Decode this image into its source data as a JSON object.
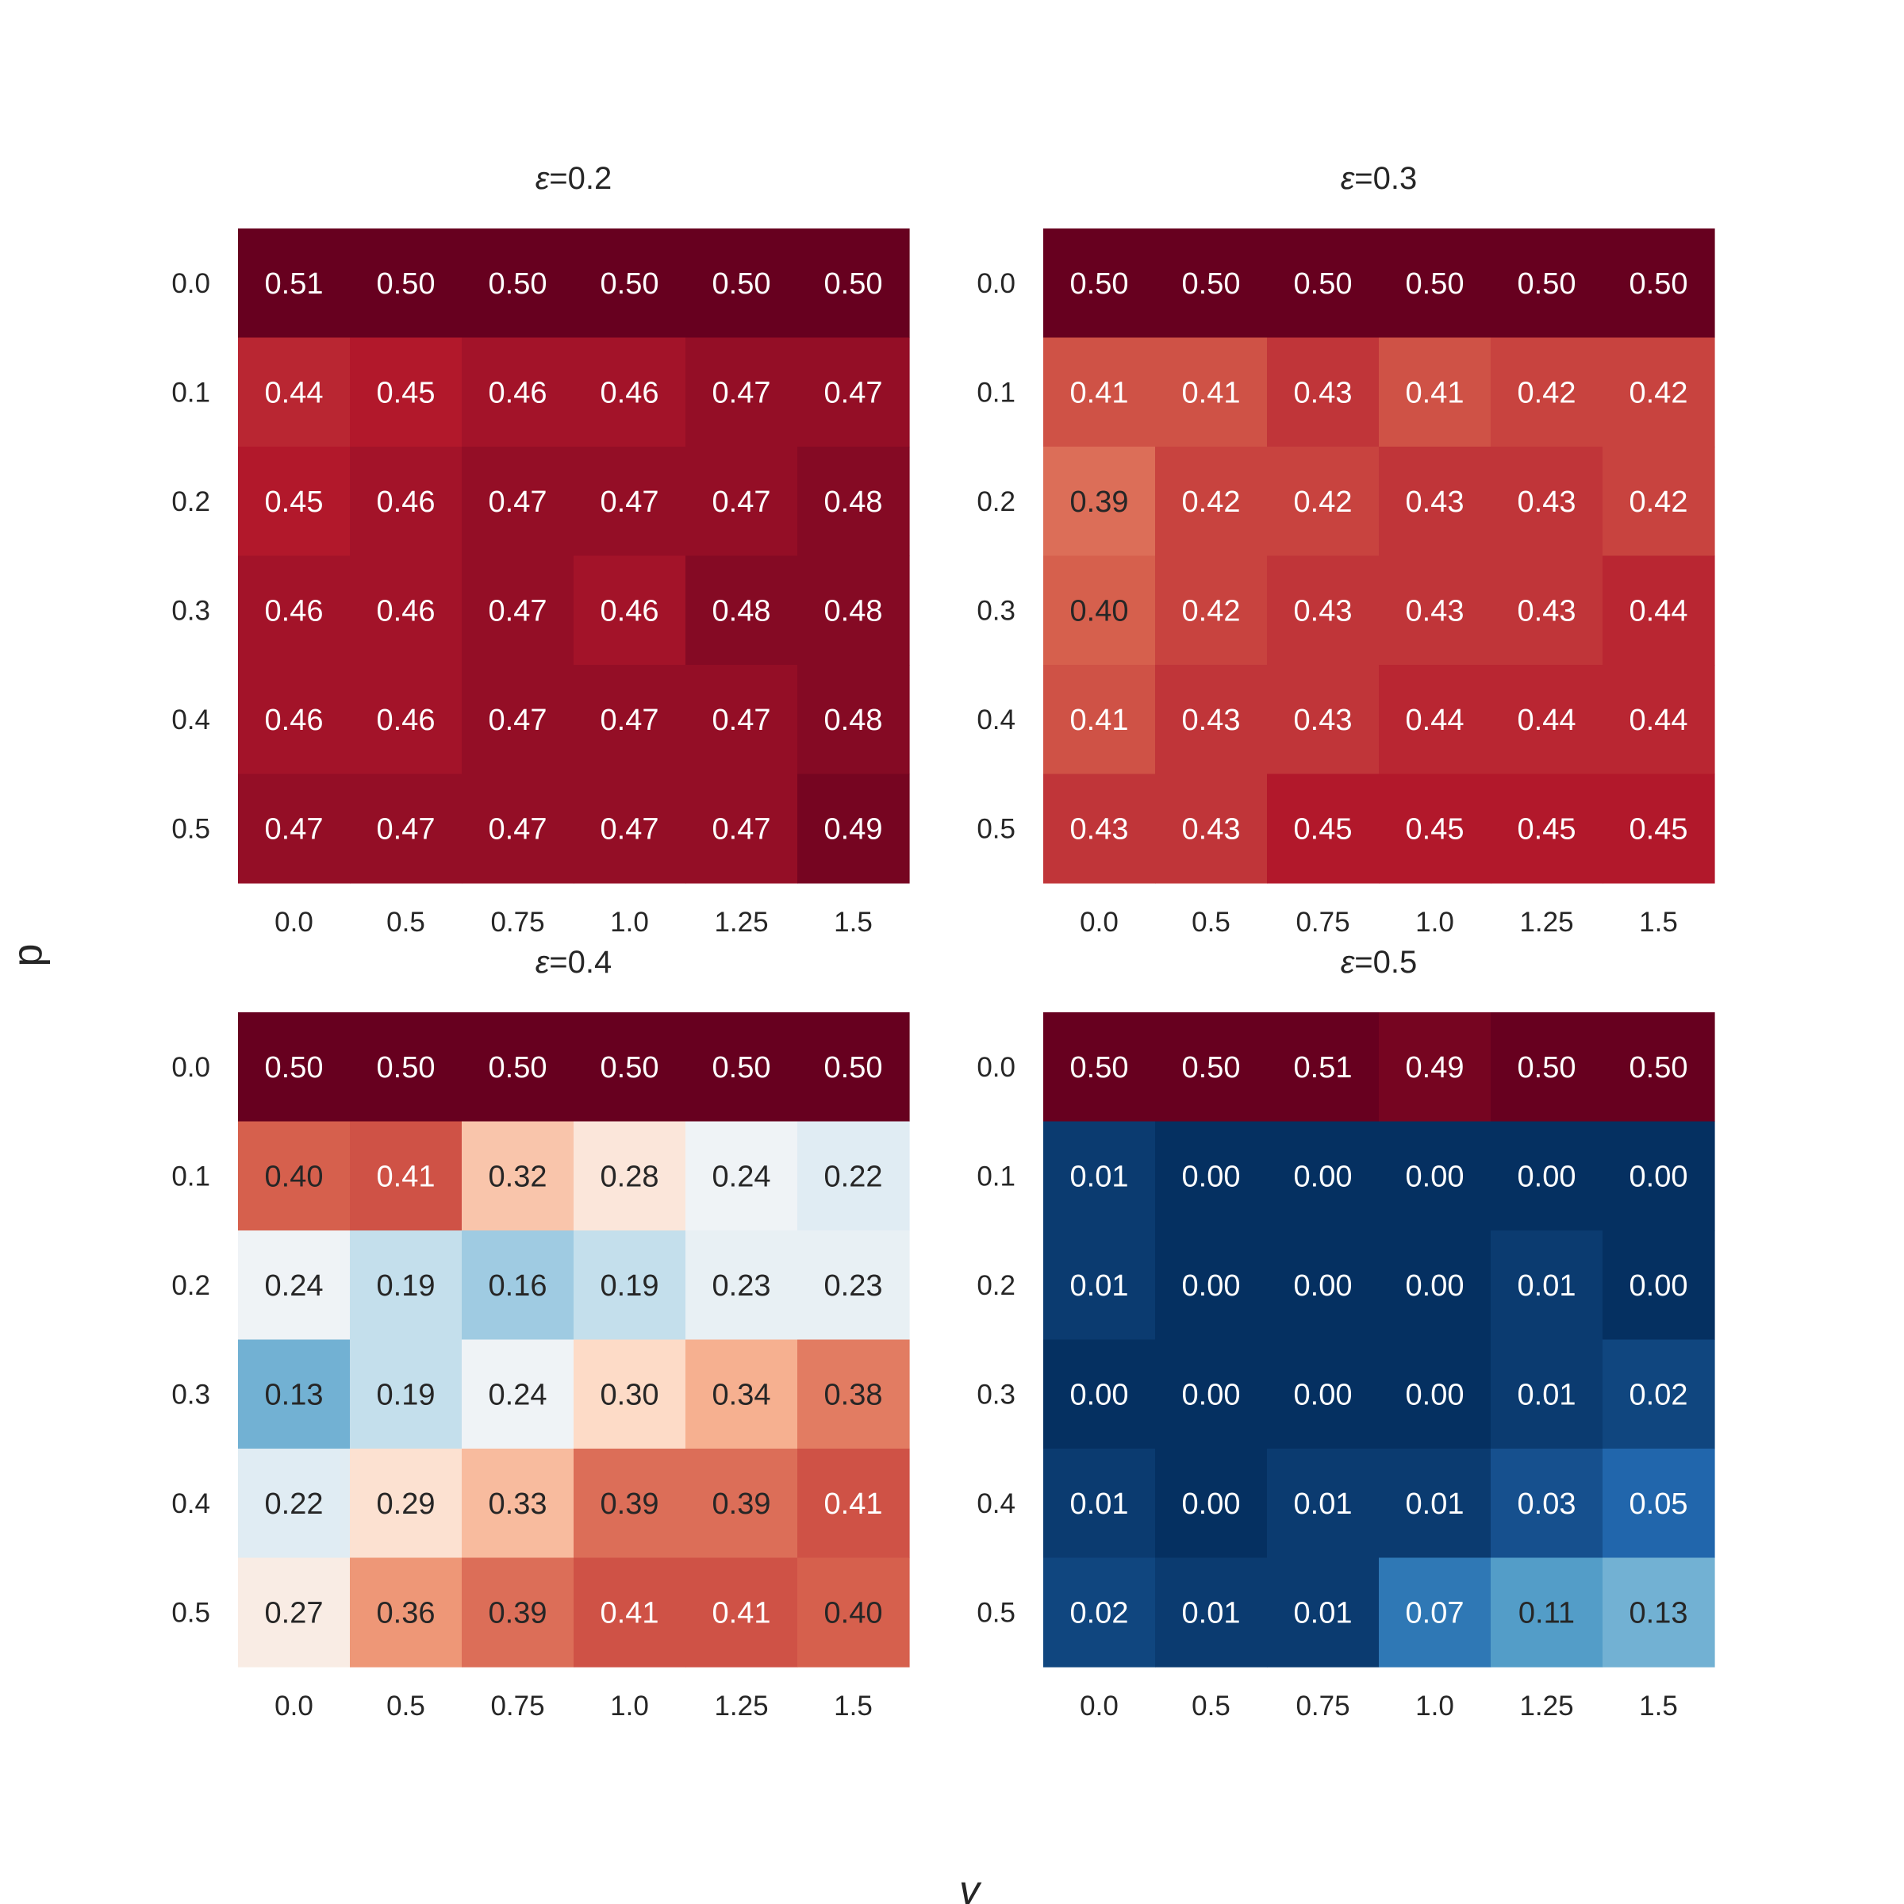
{
  "chart_data": {
    "type": "heatmap",
    "xlabel": "γ",
    "ylabel": "p",
    "colormap": "RdBu_r",
    "color_range": [
      0.0,
      0.5
    ],
    "colors": {
      "low": "#053061",
      "mid": "#f7f7f7",
      "high": "#67001f",
      "text_dark": "#262626",
      "text_light": "#ffffff"
    },
    "x_ticks": [
      "0.0",
      "0.5",
      "0.75",
      "1.0",
      "1.25",
      "1.5"
    ],
    "y_ticks": [
      "0.0",
      "0.1",
      "0.2",
      "0.3",
      "0.4",
      "0.5"
    ],
    "panels": [
      {
        "title_prefix": "ε",
        "title_suffix": "=0.2",
        "values": [
          [
            0.51,
            0.5,
            0.5,
            0.5,
            0.5,
            0.5
          ],
          [
            0.44,
            0.45,
            0.46,
            0.46,
            0.47,
            0.47
          ],
          [
            0.45,
            0.46,
            0.47,
            0.47,
            0.47,
            0.48
          ],
          [
            0.46,
            0.46,
            0.47,
            0.46,
            0.48,
            0.48
          ],
          [
            0.46,
            0.46,
            0.47,
            0.47,
            0.47,
            0.48
          ],
          [
            0.47,
            0.47,
            0.47,
            0.47,
            0.47,
            0.49
          ]
        ]
      },
      {
        "title_prefix": "ε",
        "title_suffix": "=0.3",
        "values": [
          [
            0.5,
            0.5,
            0.5,
            0.5,
            0.5,
            0.5
          ],
          [
            0.41,
            0.41,
            0.43,
            0.41,
            0.42,
            0.42
          ],
          [
            0.39,
            0.42,
            0.42,
            0.43,
            0.43,
            0.42
          ],
          [
            0.4,
            0.42,
            0.43,
            0.43,
            0.43,
            0.44
          ],
          [
            0.41,
            0.43,
            0.43,
            0.44,
            0.44,
            0.44
          ],
          [
            0.43,
            0.43,
            0.45,
            0.45,
            0.45,
            0.45
          ]
        ]
      },
      {
        "title_prefix": "ε",
        "title_suffix": "=0.4",
        "values": [
          [
            0.5,
            0.5,
            0.5,
            0.5,
            0.5,
            0.5
          ],
          [
            0.4,
            0.41,
            0.32,
            0.28,
            0.24,
            0.22
          ],
          [
            0.24,
            0.19,
            0.16,
            0.19,
            0.23,
            0.23
          ],
          [
            0.13,
            0.19,
            0.24,
            0.3,
            0.34,
            0.38
          ],
          [
            0.22,
            0.29,
            0.33,
            0.39,
            0.39,
            0.41
          ],
          [
            0.27,
            0.36,
            0.39,
            0.41,
            0.41,
            0.4
          ]
        ]
      },
      {
        "title_prefix": "ε",
        "title_suffix": "=0.5",
        "values": [
          [
            0.5,
            0.5,
            0.51,
            0.49,
            0.5,
            0.5
          ],
          [
            0.01,
            0.0,
            0.0,
            0.0,
            0.0,
            0.0
          ],
          [
            0.01,
            0.0,
            0.0,
            0.0,
            0.01,
            0.0
          ],
          [
            0.0,
            0.0,
            0.0,
            0.0,
            0.01,
            0.02
          ],
          [
            0.01,
            0.0,
            0.01,
            0.01,
            0.03,
            0.05
          ],
          [
            0.02,
            0.01,
            0.01,
            0.07,
            0.11,
            0.13
          ]
        ]
      }
    ]
  }
}
